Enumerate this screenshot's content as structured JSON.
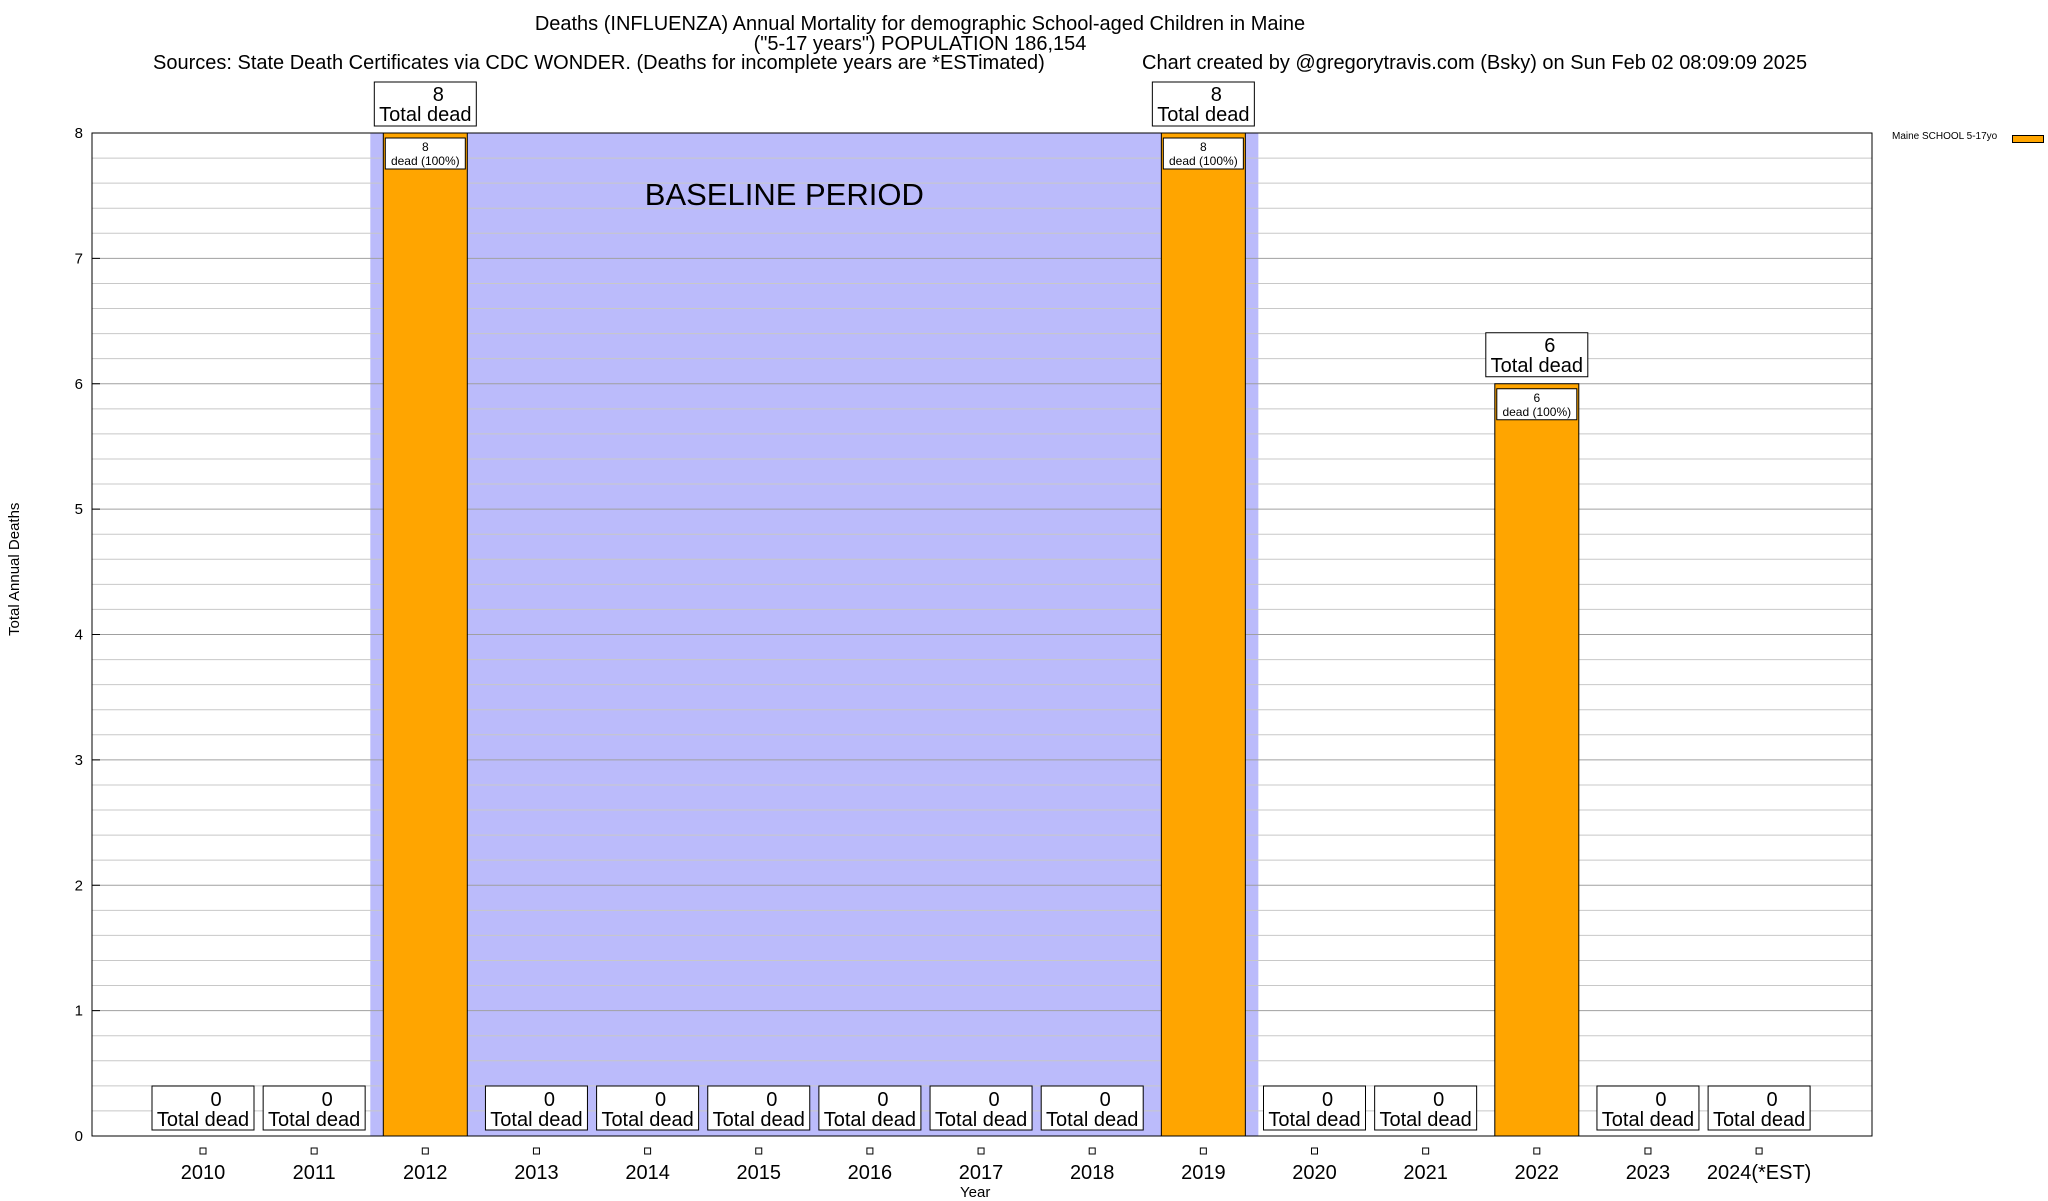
{
  "header": {
    "title_line1": "Deaths (INFLUENZA) Annual Mortality for demographic School-aged Children in Maine",
    "title_line2": "(\"5-17 years\") POPULATION 186,154",
    "sources": "Sources: State Death Certificates via CDC WONDER. (Deaths for incomplete years are *ESTimated)",
    "credit": "Chart created by @gregorytravis.com (Bsky) on Sun Feb 02 08:09:09 2025"
  },
  "chart_data": {
    "type": "bar",
    "title": "Deaths (INFLUENZA) Annual Mortality for demographic School-aged Children in Maine",
    "xlabel": "Year",
    "ylabel": "Total Annual Deaths",
    "ylim": [
      0,
      8
    ],
    "y_ticks": [
      "0",
      "1",
      "2",
      "3",
      "4",
      "5",
      "6",
      "7",
      "8"
    ],
    "categories": [
      "2010",
      "2011",
      "2012",
      "2013",
      "2014",
      "2015",
      "2016",
      "2017",
      "2018",
      "2019",
      "2020",
      "2021",
      "2022",
      "2023",
      "2024(*EST)"
    ],
    "series": [
      {
        "name": "Maine SCHOOL 5-17yo",
        "values": [
          0,
          0,
          8,
          0,
          0,
          0,
          0,
          0,
          0,
          8,
          0,
          0,
          6,
          0,
          0
        ],
        "color": "#ffa500"
      }
    ],
    "total_label": "Total dead",
    "inner_label": "dead (100%)",
    "baseline": {
      "label": "BASELINE PERIOD",
      "from": "2012",
      "to": "2019",
      "color": "#bbbbfb"
    },
    "grid": true,
    "legend": "top-right"
  }
}
